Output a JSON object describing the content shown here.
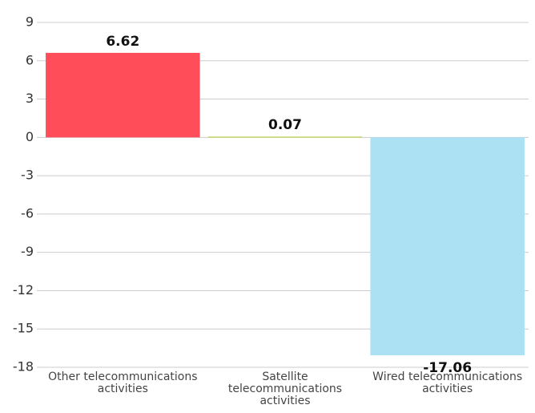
{
  "chart_data": {
    "type": "bar",
    "categories": [
      "Other telecommunications activities",
      "Satellite telecommunications activities",
      "Wired telecommunications activities"
    ],
    "values": [
      6.62,
      0.07,
      -17.06
    ],
    "colors": [
      "#ff4d5a",
      "#c5d86d",
      "#abe1f3"
    ],
    "ylim": [
      -18,
      9
    ],
    "yticks": [
      -18,
      -15,
      -12,
      -9,
      -6,
      -3,
      0,
      3,
      6,
      9
    ],
    "grid": true
  }
}
